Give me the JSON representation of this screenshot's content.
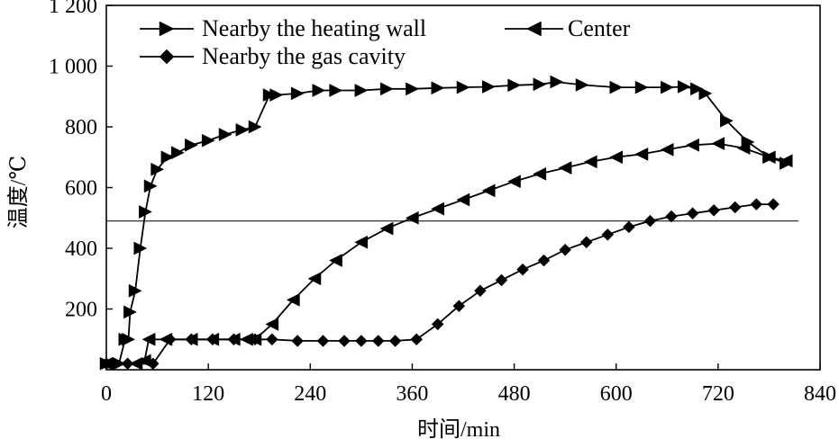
{
  "chart_data": {
    "type": "line",
    "title": "",
    "xlabel": "时间/min",
    "ylabel": "温度/℃",
    "xlim": [
      0,
      840
    ],
    "ylim": [
      0,
      1200
    ],
    "x_ticks": [
      0,
      120,
      240,
      360,
      480,
      600,
      720,
      840
    ],
    "x_tick_labels": [
      "0",
      "120",
      "240",
      "360",
      "480",
      "600",
      "720",
      "840"
    ],
    "y_ticks": [
      200,
      400,
      600,
      800,
      1000,
      1200
    ],
    "y_tick_labels": [
      "200",
      "400",
      "600",
      "800",
      "1 000",
      "1 200"
    ],
    "grid": false,
    "legend_position": "top-left",
    "reference_line_y": 490,
    "series": [
      {
        "name": "Nearby the heating wall",
        "marker": "triangle-right",
        "points": [
          [
            0,
            20
          ],
          [
            15,
            20
          ],
          [
            22,
            100
          ],
          [
            26,
            100
          ],
          [
            28,
            190
          ],
          [
            34,
            260
          ],
          [
            40,
            400
          ],
          [
            46,
            520
          ],
          [
            52,
            605
          ],
          [
            60,
            660
          ],
          [
            72,
            700
          ],
          [
            84,
            715
          ],
          [
            100,
            740
          ],
          [
            120,
            755
          ],
          [
            140,
            775
          ],
          [
            160,
            790
          ],
          [
            175,
            800
          ],
          [
            192,
            905
          ],
          [
            200,
            905
          ],
          [
            225,
            910
          ],
          [
            250,
            920
          ],
          [
            270,
            920
          ],
          [
            300,
            920
          ],
          [
            330,
            925
          ],
          [
            360,
            925
          ],
          [
            390,
            928
          ],
          [
            420,
            930
          ],
          [
            450,
            932
          ],
          [
            480,
            937
          ],
          [
            510,
            940
          ],
          [
            530,
            948
          ],
          [
            560,
            938
          ],
          [
            600,
            930
          ],
          [
            630,
            930
          ],
          [
            660,
            930
          ],
          [
            680,
            932
          ],
          [
            695,
            925
          ],
          [
            705,
            910
          ],
          [
            730,
            820
          ],
          [
            755,
            750
          ],
          [
            780,
            700
          ],
          [
            800,
            680
          ]
        ]
      },
      {
        "name": "Center",
        "marker": "triangle-left",
        "points": [
          [
            0,
            20
          ],
          [
            35,
            20
          ],
          [
            45,
            30
          ],
          [
            50,
            100
          ],
          [
            70,
            100
          ],
          [
            100,
            100
          ],
          [
            125,
            100
          ],
          [
            150,
            100
          ],
          [
            165,
            100
          ],
          [
            175,
            100
          ],
          [
            195,
            150
          ],
          [
            220,
            230
          ],
          [
            245,
            300
          ],
          [
            270,
            360
          ],
          [
            300,
            420
          ],
          [
            330,
            465
          ],
          [
            360,
            500
          ],
          [
            390,
            530
          ],
          [
            420,
            560
          ],
          [
            450,
            590
          ],
          [
            480,
            620
          ],
          [
            510,
            645
          ],
          [
            540,
            665
          ],
          [
            570,
            685
          ],
          [
            600,
            700
          ],
          [
            630,
            710
          ],
          [
            660,
            725
          ],
          [
            690,
            740
          ],
          [
            720,
            745
          ],
          [
            750,
            730
          ],
          [
            780,
            700
          ],
          [
            800,
            688
          ]
        ]
      },
      {
        "name": "Nearby the gas cavity",
        "marker": "diamond",
        "points": [
          [
            0,
            20
          ],
          [
            25,
            20
          ],
          [
            55,
            20
          ],
          [
            75,
            100
          ],
          [
            100,
            100
          ],
          [
            125,
            100
          ],
          [
            150,
            100
          ],
          [
            175,
            100
          ],
          [
            195,
            100
          ],
          [
            225,
            95
          ],
          [
            255,
            95
          ],
          [
            280,
            95
          ],
          [
            300,
            95
          ],
          [
            320,
            95
          ],
          [
            340,
            95
          ],
          [
            365,
            100
          ],
          [
            390,
            150
          ],
          [
            415,
            210
          ],
          [
            440,
            260
          ],
          [
            465,
            295
          ],
          [
            490,
            330
          ],
          [
            515,
            360
          ],
          [
            540,
            395
          ],
          [
            565,
            420
          ],
          [
            590,
            445
          ],
          [
            615,
            470
          ],
          [
            640,
            490
          ],
          [
            665,
            505
          ],
          [
            690,
            515
          ],
          [
            715,
            525
          ],
          [
            740,
            535
          ],
          [
            765,
            545
          ],
          [
            785,
            545
          ]
        ]
      }
    ]
  }
}
